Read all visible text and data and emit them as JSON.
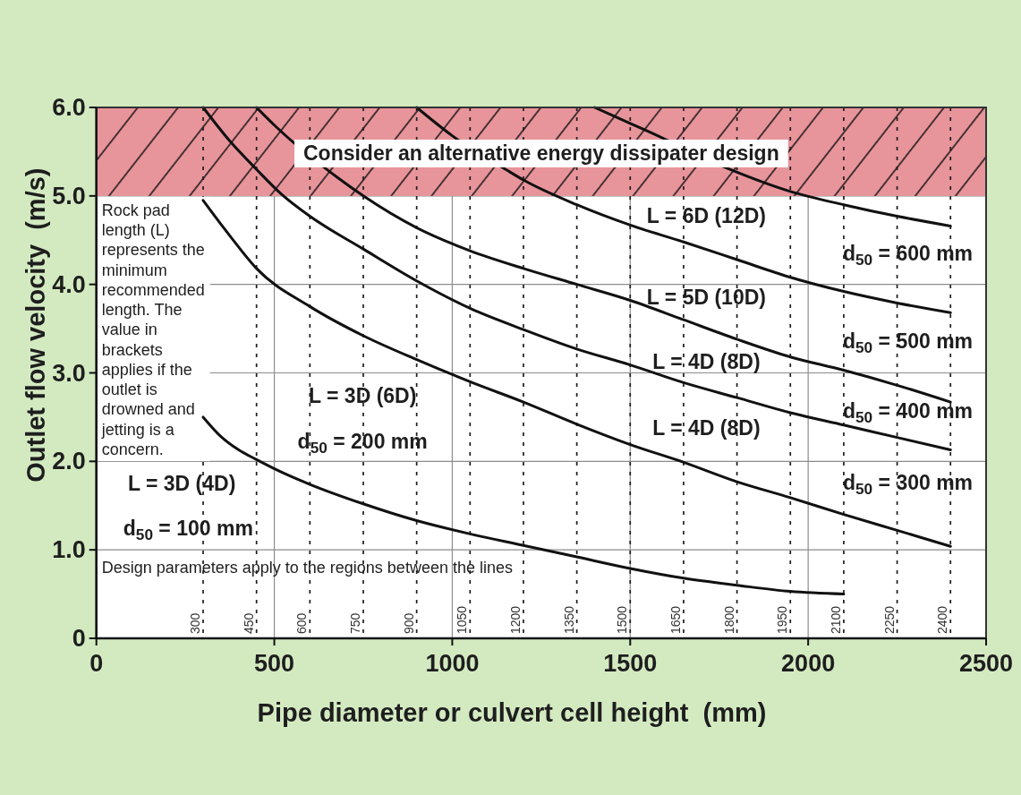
{
  "chart_data": {
    "type": "line",
    "xlabel": "Pipe diameter or culvert cell height  (mm)",
    "ylabel": "Outlet flow velocity  (m/s)",
    "xlim": [
      0,
      2500
    ],
    "xticks": [
      0,
      500,
      1000,
      1500,
      2000,
      2500
    ],
    "ylim": [
      0,
      6
    ],
    "yticks": [
      0,
      {
        "value": 1,
        "label": "1.0"
      },
      {
        "value": 2,
        "label": "2.0"
      },
      {
        "value": 3,
        "label": "3.0"
      },
      {
        "value": 4,
        "label": "4.0"
      },
      {
        "value": 5,
        "label": "5.0"
      },
      {
        "value": 6,
        "label": "6.0"
      }
    ],
    "grid": true,
    "series": [
      {
        "color": "#111111",
        "x": [
          300,
          350,
          400,
          450,
          530,
          600,
          750,
          900,
          1050,
          1200,
          1350,
          1500,
          1650,
          1800,
          1950,
          2100
        ],
        "values": [
          2.5,
          2.28,
          2.13,
          2.02,
          1.86,
          1.74,
          1.52,
          1.33,
          1.18,
          1.05,
          0.92,
          0.79,
          0.68,
          0.6,
          0.53,
          0.5
        ]
      },
      {
        "color": "#111111",
        "x": [
          300,
          375,
          450,
          600,
          750,
          900,
          1050,
          1200,
          1350,
          1500,
          1650,
          1800,
          1950,
          2100,
          2250,
          2400
        ],
        "values": [
          4.95,
          4.55,
          4.18,
          3.75,
          3.42,
          3.15,
          2.9,
          2.67,
          2.42,
          2.19,
          1.99,
          1.77,
          1.59,
          1.4,
          1.22,
          1.04
        ]
      },
      {
        "color": "#111111",
        "x": [
          300,
          375,
          450,
          520,
          600,
          750,
          900,
          1050,
          1200,
          1350,
          1500,
          1650,
          1800,
          1950,
          2100,
          2250,
          2400
        ],
        "values": [
          6.0,
          5.62,
          5.3,
          5.02,
          4.77,
          4.4,
          4.04,
          3.73,
          3.49,
          3.27,
          3.09,
          2.89,
          2.72,
          2.55,
          2.41,
          2.27,
          2.13
        ]
      },
      {
        "color": "#111111",
        "x": [
          450,
          500,
          680,
          750,
          900,
          1050,
          1200,
          1350,
          1500,
          1650,
          1800,
          1950,
          2100,
          2250,
          2400
        ],
        "values": [
          6.0,
          5.8,
          5.2,
          5.0,
          4.64,
          4.38,
          4.18,
          4.0,
          3.82,
          3.6,
          3.38,
          3.18,
          3.03,
          2.86,
          2.67
        ]
      },
      {
        "color": "#111111",
        "x": [
          900,
          1000,
          1150,
          1200,
          1350,
          1500,
          1650,
          1800,
          1950,
          2100,
          2250,
          2400
        ],
        "values": [
          6.0,
          5.68,
          5.3,
          5.18,
          4.9,
          4.67,
          4.48,
          4.28,
          4.08,
          3.92,
          3.79,
          3.68
        ]
      },
      {
        "color": "#111111",
        "x": [
          1400,
          1500,
          1550,
          1780,
          1950,
          2100,
          2250,
          2400
        ],
        "values": [
          6.0,
          5.82,
          5.73,
          5.3,
          5.05,
          4.9,
          4.77,
          4.66
        ]
      }
    ],
    "bands": [
      {
        "axis": "y",
        "from": 5,
        "to": 6,
        "label": "Consider an alternative energy dissipater design",
        "color": "#e8949b"
      }
    ],
    "ref_lines": [
      {
        "axis": "x",
        "value": 300,
        "label": "300",
        "line_style": "dotted"
      },
      {
        "axis": "x",
        "value": 450,
        "label": "450",
        "line_style": "dotted"
      },
      {
        "axis": "x",
        "value": 600,
        "label": "600",
        "line_style": "dotted"
      },
      {
        "axis": "x",
        "value": 750,
        "label": "750",
        "line_style": "dotted"
      },
      {
        "axis": "x",
        "value": 900,
        "label": "900",
        "line_style": "dotted"
      },
      {
        "axis": "x",
        "value": 1050,
        "label": "1050",
        "line_style": "dotted"
      },
      {
        "axis": "x",
        "value": 1200,
        "label": "1200",
        "line_style": "dotted"
      },
      {
        "axis": "x",
        "value": 1350,
        "label": "1350",
        "line_style": "dotted"
      },
      {
        "axis": "x",
        "value": 1500,
        "label": "1500",
        "line_style": "dotted"
      },
      {
        "axis": "x",
        "value": 1650,
        "label": "1650",
        "line_style": "dotted"
      },
      {
        "axis": "x",
        "value": 1800,
        "label": "1800",
        "line_style": "dotted"
      },
      {
        "axis": "x",
        "value": 1950,
        "label": "1950",
        "line_style": "dotted"
      },
      {
        "axis": "x",
        "value": 2100,
        "label": "2100",
        "line_style": "dotted"
      },
      {
        "axis": "x",
        "value": 2250,
        "label": "2250",
        "line_style": "dotted"
      },
      {
        "axis": "x",
        "value": 2400,
        "label": "2400",
        "line_style": "dotted"
      }
    ],
    "annotations": [
      "Rock pad length (L) represents the minimum recommended length. The value in brackets applies if the outlet is drowned and jetting is a concern.",
      "Design parameters apply to the regions between the lines",
      "L = 3D (4D)",
      "d$_{50}$ = 100 mm",
      "L = 3D (6D)",
      "d$_{50}$ = 200 mm",
      "L = 4D (8D)",
      "d$_{50}$ = 300 mm",
      "L = 4D (8D)",
      "d$_{50}$ = 400 mm",
      "L = 5D (10D)",
      "d$_{50}$ = 500 mm",
      "L = 6D (12D)",
      "d$_{50}$ = 600 mm"
    ]
  }
}
